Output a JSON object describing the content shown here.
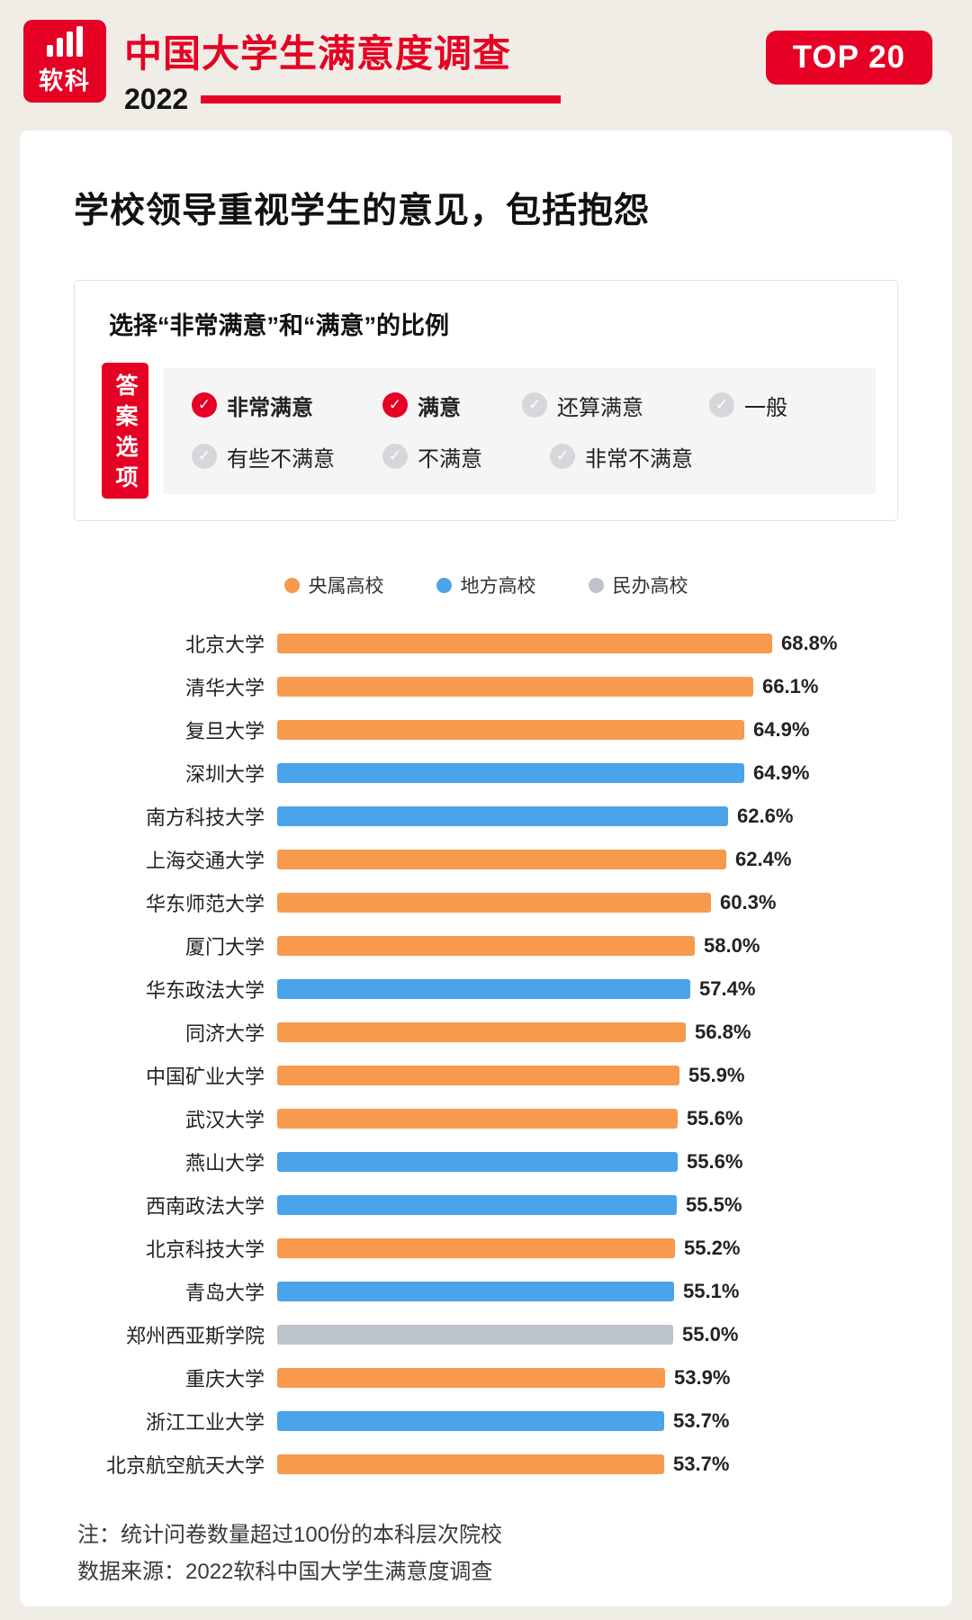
{
  "page": {
    "background": "#F0EDE7",
    "accent_red": "#E60023"
  },
  "header": {
    "logo_text": "软科",
    "title": "中国大学生满意度调查",
    "year": "2022",
    "badge": "TOP 20"
  },
  "card": {
    "title": "学校领导重视学生的意见，包括抱怨",
    "question_box": {
      "subtitle": "选择“非常满意”和“满意”的比例",
      "tab_label": "答案选项",
      "options": [
        {
          "label": "非常满意",
          "checked": true
        },
        {
          "label": "满意",
          "checked": true
        },
        {
          "label": "还算满意",
          "checked": false
        },
        {
          "label": "一般",
          "checked": false
        },
        {
          "label": "有些不满意",
          "checked": false
        },
        {
          "label": "不满意",
          "checked": false
        },
        {
          "label": "非常不满意",
          "checked": false
        }
      ]
    },
    "notes": [
      "注：统计问卷数量超过100份的本科层次院校",
      "数据来源：2022软科中国大学生满意度调查"
    ]
  },
  "chart_data": {
    "type": "bar",
    "orientation": "horizontal",
    "title": "选择“非常满意”和“满意”的比例",
    "value_suffix": "%",
    "legend": [
      {
        "name": "央属高校",
        "color": "#F79A4D"
      },
      {
        "name": "地方高校",
        "color": "#4BA3EA"
      },
      {
        "name": "民办高校",
        "color": "#BDC3CA"
      }
    ],
    "categories": [
      "北京大学",
      "清华大学",
      "复旦大学",
      "深圳大学",
      "南方科技大学",
      "上海交通大学",
      "华东师范大学",
      "厦门大学",
      "华东政法大学",
      "同济大学",
      "中国矿业大学",
      "武汉大学",
      "燕山大学",
      "西南政法大学",
      "北京科技大学",
      "青岛大学",
      "郑州西亚斯学院",
      "重庆大学",
      "浙江工业大学",
      "北京航空航天大学"
    ],
    "values": [
      68.8,
      66.1,
      64.9,
      64.9,
      62.6,
      62.4,
      60.3,
      58.0,
      57.4,
      56.8,
      55.9,
      55.6,
      55.6,
      55.5,
      55.2,
      55.1,
      55.0,
      53.9,
      53.7,
      53.7
    ],
    "groups": [
      "央属高校",
      "央属高校",
      "央属高校",
      "地方高校",
      "地方高校",
      "央属高校",
      "央属高校",
      "央属高校",
      "地方高校",
      "央属高校",
      "央属高校",
      "央属高校",
      "地方高校",
      "地方高校",
      "央属高校",
      "地方高校",
      "民办高校",
      "央属高校",
      "地方高校",
      "央属高校"
    ]
  }
}
